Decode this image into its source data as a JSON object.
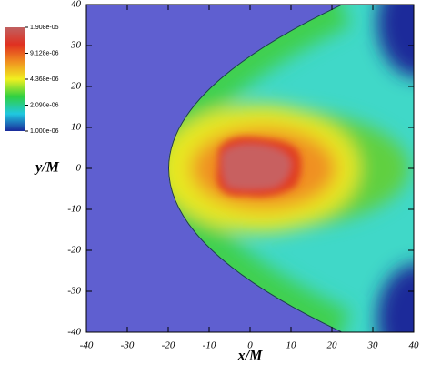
{
  "chart_data": {
    "type": "heatmap",
    "xlabel": "x/M",
    "ylabel": "y/M",
    "xlim": [
      -40,
      40
    ],
    "ylim": [
      -40,
      40
    ],
    "xticks": [
      -40,
      -30,
      -20,
      -10,
      0,
      10,
      20,
      30,
      40
    ],
    "yticks": [
      -40,
      -30,
      -20,
      -10,
      0,
      10,
      20,
      30,
      40
    ],
    "colorbar": {
      "scale": "log",
      "clim": [
        1e-06,
        1.908e-05
      ],
      "colors": [
        "#1a2a9a",
        "#20c8e0",
        "#30d040",
        "#f0f020",
        "#f09020",
        "#e03020",
        "#c06060"
      ],
      "ticks": [
        {
          "value": 1e-06,
          "label": "1.000e-06"
        },
        {
          "value": 2.09e-06,
          "label": "2.090e-06"
        },
        {
          "value": 4.368e-06,
          "label": "4.368e-06"
        },
        {
          "value": 9.128e-06,
          "label": "9.128e-06"
        },
        {
          "value": 1.908e-05,
          "label": "1.908e-05"
        }
      ]
    }
  }
}
